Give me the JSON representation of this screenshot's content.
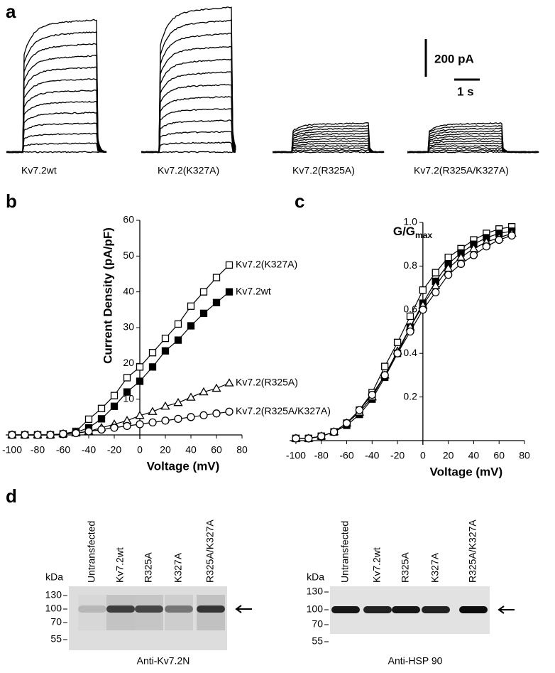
{
  "panel_labels": [
    "a",
    "b",
    "c",
    "d"
  ],
  "traces": {
    "labels": [
      "Kv7.2wt",
      "Kv7.2(K327A)",
      "Kv7.2(R325A)",
      "Kv7.2(R325A/K327A)"
    ],
    "scale_current": "200 pA",
    "scale_time": "1 s"
  },
  "chart_data": [
    {
      "type": "line",
      "xlabel": "Voltage (mV)",
      "ylabel": "Current Density (pA/pF)",
      "x": [
        -100,
        -90,
        -80,
        -70,
        -60,
        -50,
        -40,
        -30,
        -20,
        -10,
        0,
        10,
        20,
        30,
        40,
        50,
        60,
        70
      ],
      "xlim": [
        -105,
        80
      ],
      "ylim": [
        0,
        60
      ],
      "xticks": [
        -100,
        -80,
        -60,
        -40,
        -20,
        0,
        20,
        40,
        60,
        80
      ],
      "yticks": [
        10,
        20,
        30,
        40,
        50,
        60
      ],
      "series": [
        {
          "name": "Kv7.2(K327A)",
          "color": "#000000",
          "marker": "open-square",
          "values": [
            0,
            0,
            0,
            0,
            0.3,
            1,
            4.4,
            7.4,
            11,
            16,
            19,
            23,
            27,
            31,
            36,
            40,
            44,
            47.5
          ]
        },
        {
          "name": "Kv7.2wt",
          "color": "#000000",
          "marker": "filled-square",
          "values": [
            0,
            0,
            0,
            0,
            0.2,
            0.7,
            2,
            4.5,
            8,
            12,
            15,
            19,
            23.5,
            26.5,
            30.5,
            34,
            37,
            40
          ]
        },
        {
          "name": "Kv7.2(R325A)",
          "color": "#000000",
          "marker": "open-triangle",
          "values": [
            0,
            0,
            0,
            0,
            0.3,
            0.5,
            1,
            2,
            3,
            4,
            5.4,
            6.5,
            8,
            9,
            10.5,
            12,
            13,
            14.5
          ]
        },
        {
          "name": "Kv7.2(R325A/K327A)",
          "color": "#000000",
          "marker": "open-circle",
          "values": [
            0,
            0,
            0,
            0,
            0.3,
            0.5,
            1,
            1.5,
            2,
            2.5,
            3,
            3.5,
            4,
            4.5,
            5,
            5.5,
            6,
            6.5
          ]
        }
      ]
    },
    {
      "type": "line",
      "xlabel": "Voltage (mV)",
      "ylabel": "G/G",
      "ylabel_sub": "max",
      "x": [
        -100,
        -90,
        -80,
        -70,
        -60,
        -50,
        -40,
        -30,
        -20,
        -10,
        0,
        10,
        20,
        30,
        40,
        50,
        60,
        70
      ],
      "xlim": [
        -105,
        80
      ],
      "ylim": [
        0,
        1
      ],
      "xticks": [
        -100,
        -80,
        -60,
        -40,
        -20,
        0,
        20,
        40,
        60,
        80
      ],
      "yticks": [
        0.2,
        0.4,
        0.6,
        0.8,
        {
          "value": 1,
          "label": "1.0"
        }
      ],
      "series": [
        {
          "color": "#000000",
          "marker": "open-square",
          "values": [
            0.01,
            0.01,
            0.02,
            0.04,
            0.08,
            0.14,
            0.22,
            0.34,
            0.45,
            0.57,
            0.69,
            0.77,
            0.84,
            0.88,
            0.92,
            0.95,
            0.97,
            0.98
          ]
        },
        {
          "color": "#000000",
          "marker": "filled-square",
          "values": [
            0.01,
            0.01,
            0.02,
            0.04,
            0.07,
            0.12,
            0.19,
            0.29,
            0.4,
            0.52,
            0.63,
            0.73,
            0.81,
            0.86,
            0.9,
            0.93,
            0.95,
            0.96
          ]
        },
        {
          "color": "#000000",
          "marker": "open-triangle",
          "values": [
            0.01,
            0.01,
            0.02,
            0.04,
            0.08,
            0.13,
            0.2,
            0.3,
            0.41,
            0.52,
            0.62,
            0.71,
            0.79,
            0.84,
            0.88,
            0.91,
            0.93,
            0.95
          ]
        },
        {
          "color": "#000000",
          "marker": "open-circle",
          "values": [
            0.01,
            0.01,
            0.02,
            0.04,
            0.08,
            0.14,
            0.21,
            0.3,
            0.4,
            0.5,
            0.6,
            0.68,
            0.76,
            0.81,
            0.85,
            0.89,
            0.92,
            0.94
          ]
        }
      ]
    }
  ],
  "blots": [
    {
      "lanes": [
        "Untransfected",
        "Kv7.2wt",
        "R325A",
        "K327A",
        "R325A/K327A"
      ],
      "kda_label": "kDa",
      "markers": [
        130,
        100,
        70,
        55
      ],
      "antibody": "Anti-Kv7.2N"
    },
    {
      "lanes": [
        "Untransfected",
        "Kv7.2wt",
        "R325A",
        "K327A",
        "R325A/K327A"
      ],
      "kda_label": "kDa",
      "markers": [
        130,
        100,
        70,
        55
      ],
      "antibody": "Anti-HSP 90"
    }
  ]
}
